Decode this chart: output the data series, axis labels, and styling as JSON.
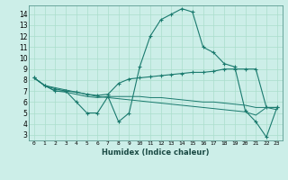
{
  "xlabel": "Humidex (Indice chaleur)",
  "background_color": "#cceee8",
  "line_color": "#1a7a6e",
  "grid_color": "#aaddcc",
  "xlim": [
    -0.5,
    23.5
  ],
  "ylim": [
    2.5,
    14.8
  ],
  "xticks": [
    0,
    1,
    2,
    3,
    4,
    5,
    6,
    7,
    8,
    9,
    10,
    11,
    12,
    13,
    14,
    15,
    16,
    17,
    18,
    19,
    20,
    21,
    22,
    23
  ],
  "yticks": [
    3,
    4,
    5,
    6,
    7,
    8,
    9,
    10,
    11,
    12,
    13,
    14
  ],
  "line1_x": [
    0,
    1,
    2,
    3,
    4,
    5,
    6,
    7,
    8,
    9,
    10,
    11,
    12,
    13,
    14,
    15,
    16,
    17,
    18,
    19,
    20,
    21,
    22,
    23
  ],
  "line1_y": [
    8.2,
    7.5,
    7.0,
    7.0,
    6.0,
    5.0,
    5.0,
    6.5,
    4.2,
    5.0,
    9.2,
    12.0,
    13.5,
    14.0,
    14.5,
    14.2,
    11.0,
    10.5,
    9.5,
    9.2,
    5.2,
    4.2,
    2.8,
    5.5
  ],
  "line2_x": [
    0,
    1,
    2,
    3,
    4,
    5,
    6,
    7,
    8,
    9,
    10,
    11,
    12,
    13,
    14,
    15,
    16,
    17,
    18,
    19,
    20,
    21,
    22,
    23
  ],
  "line2_y": [
    8.2,
    7.5,
    7.2,
    7.0,
    6.9,
    6.7,
    6.6,
    6.7,
    7.7,
    8.1,
    8.2,
    8.3,
    8.4,
    8.5,
    8.6,
    8.7,
    8.7,
    8.8,
    9.0,
    9.0,
    9.0,
    9.0,
    5.5,
    5.5
  ],
  "line3_x": [
    0,
    1,
    2,
    3,
    4,
    5,
    6,
    7,
    8,
    9,
    10,
    11,
    12,
    13,
    14,
    15,
    16,
    17,
    18,
    19,
    20,
    21,
    22,
    23
  ],
  "line3_y": [
    8.2,
    7.5,
    7.0,
    6.9,
    6.7,
    6.5,
    6.4,
    6.5,
    6.5,
    6.5,
    6.5,
    6.4,
    6.4,
    6.3,
    6.2,
    6.1,
    6.0,
    6.0,
    5.9,
    5.8,
    5.7,
    5.5,
    5.5,
    5.5
  ],
  "line4_x": [
    0,
    1,
    2,
    3,
    4,
    5,
    6,
    7,
    8,
    9,
    10,
    11,
    12,
    13,
    14,
    15,
    16,
    17,
    18,
    19,
    20,
    21,
    22,
    23
  ],
  "line4_y": [
    8.2,
    7.5,
    7.3,
    7.1,
    6.9,
    6.7,
    6.5,
    6.4,
    6.3,
    6.2,
    6.1,
    6.0,
    5.9,
    5.8,
    5.7,
    5.6,
    5.5,
    5.4,
    5.3,
    5.2,
    5.1,
    4.8,
    5.5,
    5.3
  ]
}
